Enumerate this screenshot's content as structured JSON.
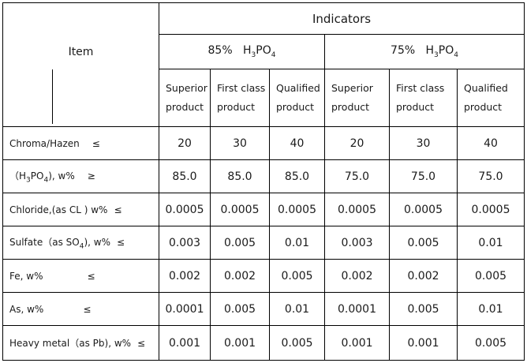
{
  "header": {
    "item": "Item",
    "indicators": "Indicators",
    "groups": [
      {
        "pct": "85%",
        "acid": "H",
        "sub1": "3",
        "mid": "PO",
        "sub2": "4"
      },
      {
        "pct": "75%",
        "acid": "H",
        "sub1": "3",
        "mid": "PO",
        "sub2": "4"
      }
    ],
    "grades": [
      {
        "line1": "Superior",
        "line2": "product"
      },
      {
        "line1": "First class",
        "line2": "product"
      },
      {
        "line1": "Qualified",
        "line2": "product"
      }
    ]
  },
  "rows": [
    {
      "label": "Chroma/Hazen",
      "symbol": "≤",
      "values": [
        "20",
        "30",
        "40",
        "20",
        "30",
        "40"
      ]
    },
    {
      "label_pre": "（H",
      "label_sub1": "3",
      "label_mid": "PO",
      "label_sub2": "4",
      "label_post": "), w%",
      "symbol": "≥",
      "values": [
        "85.0",
        "85.0",
        "85.0",
        "75.0",
        "75.0",
        "75.0"
      ]
    },
    {
      "label": "Chloride,(as  CL ) w%",
      "symbol": "≤",
      "values": [
        "0.0005",
        "0.0005",
        "0.0005",
        "0.0005",
        "0.0005",
        "0.0005"
      ]
    },
    {
      "label_pre": "Sulfate（as SO",
      "label_sub1": "4",
      "label_post": "), w%",
      "symbol": "≤",
      "values": [
        "0.003",
        "0.005",
        "0.01",
        "0.003",
        "0.005",
        "0.01"
      ]
    },
    {
      "label": "Fe, w%",
      "symbol": "≤",
      "values": [
        "0.002",
        "0.002",
        "0.005",
        "0.002",
        "0.002",
        "0.005"
      ]
    },
    {
      "label": "As, w%",
      "symbol": "≤",
      "values": [
        "0.0001",
        "0.005",
        "0.01",
        "0.0001",
        "0.005",
        "0.01"
      ]
    },
    {
      "label": "Heavy metal（as Pb), w%",
      "symbol": "≤",
      "values": [
        "0.001",
        "0.001",
        "0.005",
        "0.001",
        "0.001",
        "0.005"
      ]
    }
  ]
}
